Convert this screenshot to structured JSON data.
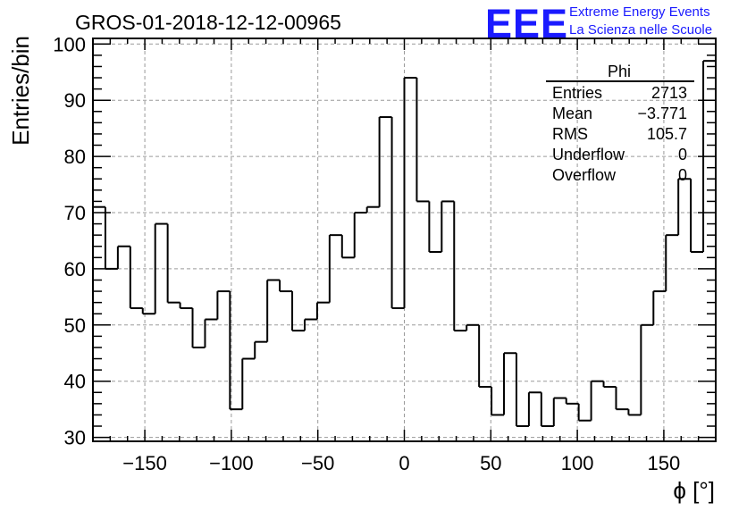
{
  "chart_data": {
    "type": "histogram",
    "title": "GROS-01-2018-12-12-00965",
    "xlabel": "ϕ [°]",
    "ylabel": "Entries/bin",
    "xlim": [
      -180,
      180
    ],
    "ylim": [
      29.3,
      101
    ],
    "grid": true,
    "bin_width": 7.2,
    "bin_edges_start": -180,
    "x_ticks": [
      -150,
      -100,
      -50,
      0,
      50,
      100,
      150
    ],
    "x_tick_labels": [
      "−150",
      "−100",
      "−50",
      "0",
      "50",
      "100",
      "150"
    ],
    "y_ticks": [
      30,
      40,
      50,
      60,
      70,
      80,
      90,
      100
    ],
    "y_tick_labels": [
      "30",
      "40",
      "50",
      "60",
      "70",
      "80",
      "90",
      "100"
    ],
    "values": [
      71,
      60,
      64,
      53,
      52,
      68,
      54,
      53,
      46,
      51,
      56,
      35,
      44,
      47,
      58,
      56,
      49,
      51,
      54,
      66,
      62,
      70,
      71,
      87,
      53,
      94,
      72,
      63,
      72,
      49,
      50,
      39,
      34,
      45,
      32,
      38,
      32,
      37,
      36,
      33,
      40,
      39,
      35,
      34,
      50,
      56,
      66,
      76,
      63,
      97
    ]
  },
  "stats_box": {
    "title": "Phi",
    "rows": [
      {
        "label": "Entries",
        "value": "2713"
      },
      {
        "label": "Mean",
        "value": "−3.771"
      },
      {
        "label": "RMS",
        "value": "105.7"
      },
      {
        "label": "Underflow",
        "value": "0"
      },
      {
        "label": "Overflow",
        "value": "0"
      }
    ]
  },
  "logo": {
    "mark": "EEE",
    "line1": "Extreme Energy Events",
    "line2": "La Scienza nelle Scuole",
    "color": "#1a1aff"
  }
}
